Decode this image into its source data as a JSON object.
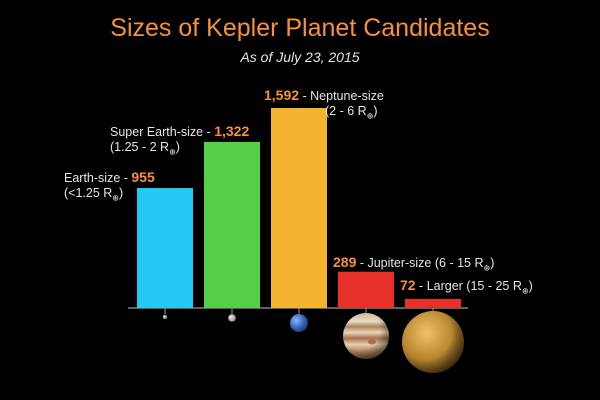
{
  "chart_data": {
    "type": "bar",
    "title": "Sizes of Kepler Planet Candidates",
    "subtitle": "As of July 23, 2015",
    "categories": [
      "Earth-size",
      "Super Earth-size",
      "Neptune-size",
      "Jupiter-size",
      "Larger"
    ],
    "values": [
      955,
      1322,
      1592,
      289,
      72
    ],
    "value_labels": [
      "955",
      "1,322",
      "1,592",
      "289",
      "72"
    ],
    "ranges": [
      "(<1.25 R",
      "(1.25 - 2 R",
      "(2 - 6 R",
      "(6 - 15 R",
      "(15 - 25 R"
    ],
    "unit_subscript": "⊕",
    "unit_close": ")",
    "separator": " - ",
    "colors": [
      "#25c8f2",
      "#55cf48",
      "#f2b42c",
      "#e8302a",
      "#e8302a"
    ],
    "planet_icons": [
      "moon-icon",
      "mars-icon",
      "neptune-icon",
      "jupiter-icon",
      "gas-giant-icon"
    ],
    "background": "#000000",
    "accent": "#f7913a",
    "xlabel": "",
    "ylabel": "",
    "ylim": [
      0,
      1700
    ],
    "grid": false,
    "legend": "none"
  }
}
